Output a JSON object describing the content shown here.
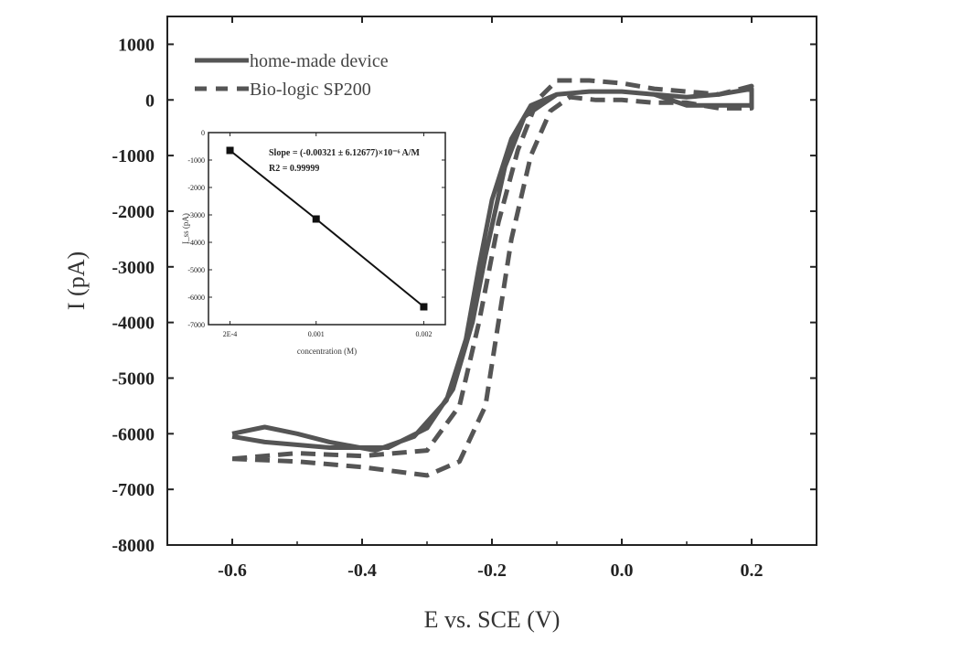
{
  "chart_data": [
    {
      "type": "line",
      "xlabel": "E vs. SCE (V)",
      "ylabel": "I (pA)",
      "xlim": [
        -0.7,
        0.3
      ],
      "ylim": [
        -8000,
        1500
      ],
      "xticks": [
        -0.6,
        -0.4,
        -0.2,
        0.0,
        0.2
      ],
      "xtick_labels": [
        "-0.6",
        "-0.4",
        "-0.2",
        "0.0",
        "0.2"
      ],
      "yticks": [
        1000,
        0,
        -1000,
        -2000,
        -3000,
        -4000,
        -5000,
        -6000,
        -7000,
        -8000
      ],
      "ytick_labels": [
        "1000",
        "0",
        "-1000",
        "-2000",
        "-3000",
        "-4000",
        "-5000",
        "-6000",
        "-7000",
        "-8000"
      ],
      "grid": false,
      "legend_position": "top-left",
      "series": [
        {
          "name": "home-made device",
          "style": "solid",
          "color": "#555555",
          "x": [
            -0.6,
            -0.55,
            -0.5,
            -0.45,
            -0.38,
            -0.32,
            -0.27,
            -0.24,
            -0.22,
            -0.2,
            -0.17,
            -0.14,
            -0.1,
            -0.05,
            0,
            0.05,
            0.1,
            0.15,
            0.2,
            0.2,
            0.15,
            0.1,
            0.05,
            0,
            -0.05,
            -0.1,
            -0.15,
            -0.18,
            -0.21,
            -0.23,
            -0.26,
            -0.3,
            -0.36,
            -0.45,
            -0.55,
            -0.6
          ],
          "y": [
            -6000,
            -5880,
            -6000,
            -6150,
            -6300,
            -6050,
            -5400,
            -4300,
            -3000,
            -1800,
            -700,
            -100,
            100,
            150,
            150,
            100,
            -100,
            -100,
            -100,
            200,
            100,
            50,
            100,
            150,
            150,
            100,
            -300,
            -1200,
            -2800,
            -4000,
            -5200,
            -5900,
            -6250,
            -6250,
            -6150,
            -6050
          ]
        },
        {
          "name": "Bio-logic SP200",
          "style": "dashed",
          "color": "#555555",
          "x": [
            -0.6,
            -0.5,
            -0.4,
            -0.3,
            -0.25,
            -0.21,
            -0.19,
            -0.17,
            -0.14,
            -0.11,
            -0.08,
            -0.04,
            0,
            0.05,
            0.1,
            0.15,
            0.2,
            0.2,
            0.15,
            0.1,
            0.05,
            0,
            -0.05,
            -0.1,
            -0.13,
            -0.16,
            -0.19,
            -0.22,
            -0.25,
            -0.3,
            -0.4,
            -0.5,
            -0.6
          ],
          "y": [
            -6450,
            -6500,
            -6600,
            -6750,
            -6500,
            -5500,
            -4000,
            -2500,
            -1000,
            -200,
            50,
            0,
            0,
            -50,
            -50,
            -150,
            -150,
            250,
            100,
            150,
            200,
            300,
            350,
            350,
            0,
            -900,
            -2200,
            -4000,
            -5500,
            -6300,
            -6400,
            -6350,
            -6450
          ]
        }
      ]
    },
    {
      "type": "line",
      "xlabel": "concentration (M)",
      "ylabel": "I_ss (pA)",
      "xlim": [
        0,
        0.0022
      ],
      "ylim": [
        -7000,
        0
      ],
      "xticks": [
        0.0002,
        0.001,
        0.002
      ],
      "xtick_labels": [
        "2E-4",
        "0.001",
        "0.002"
      ],
      "yticks": [
        0,
        -1000,
        -2000,
        -3000,
        -4000,
        -5000,
        -6000,
        -7000
      ],
      "ytick_labels": [
        "0",
        "-1000",
        "-2000",
        "-3000",
        "-4000",
        "-5000",
        "-6000",
        "-7000"
      ],
      "markers": "square",
      "x": [
        0.0002,
        0.001,
        0.002
      ],
      "y": [
        -650,
        -3150,
        -6350
      ],
      "annotations": [
        "Slope = (-0.00321 ± 6.12677)×10⁻⁶ A/M",
        "R2 = 0.99999"
      ]
    }
  ]
}
